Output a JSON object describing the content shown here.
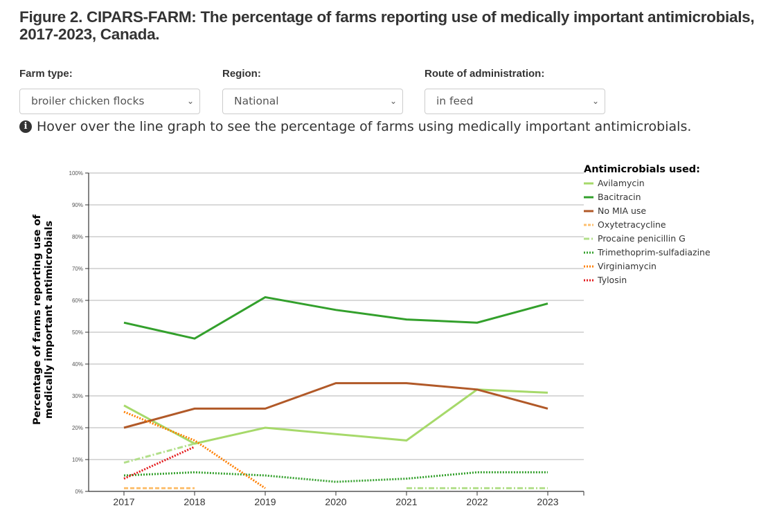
{
  "page": {
    "title": "Figure 2. CIPARS-FARM: The percentage of farms reporting use of medically important antimicrobials, 2017-2023, Canada.",
    "filters": [
      {
        "label": "Farm type:",
        "value": "broiler chicken flocks"
      },
      {
        "label": "Region:",
        "value": "National"
      },
      {
        "label": "Route of administration:",
        "value": "in feed"
      }
    ],
    "hint": "Hover over the line graph to see the percentage of farms using medically important antimicrobials.",
    "hint_icon": "info-circle-icon"
  },
  "chart_data": {
    "type": "line",
    "title": "",
    "xlabel": "",
    "ylabel": "Percentage of farms reporting use of medically important antimicrobials",
    "ylabel_lines": [
      "Percentage of farms reporting use of",
      "medically important antimicrobials"
    ],
    "x": [
      2017,
      2018,
      2019,
      2020,
      2021,
      2022,
      2023
    ],
    "x_tick_labels": [
      "2017",
      "2018",
      "2019",
      "2020",
      "2021",
      "2022",
      "2023"
    ],
    "ylim": [
      0,
      100
    ],
    "y_ticks": [
      0,
      10,
      20,
      30,
      40,
      50,
      60,
      70,
      80,
      90,
      100
    ],
    "y_tick_labels": [
      "0%",
      "10%",
      "20%",
      "30%",
      "40%",
      "50%",
      "60%",
      "70%",
      "80%",
      "90%",
      "100%"
    ],
    "grid": true,
    "legend_title": "Antimicrobials used:",
    "legend_position": "right",
    "series": [
      {
        "name": "Avilamycin",
        "color": "#a6d96a",
        "style": "solid",
        "values": [
          27,
          15,
          20,
          18,
          16,
          32,
          31
        ]
      },
      {
        "name": "Bacitracin",
        "color": "#33a02c",
        "style": "solid",
        "values": [
          53,
          48,
          61,
          57,
          54,
          53,
          59
        ]
      },
      {
        "name": "No MIA use",
        "color": "#b15928",
        "style": "solid",
        "values": [
          20,
          26,
          26,
          34,
          34,
          32,
          26
        ]
      },
      {
        "name": "Oxytetracycline",
        "color": "#fdbf6f",
        "style": "dashed",
        "values": [
          1,
          1,
          null,
          null,
          null,
          null,
          null
        ]
      },
      {
        "name": "Procaine penicillin G",
        "color": "#b2df8a",
        "style": "dashdot",
        "values": [
          9,
          15,
          null,
          null,
          1,
          1,
          1
        ]
      },
      {
        "name": "Trimethoprim-sulfadiazine",
        "color": "#33a02c",
        "style": "dotted",
        "values": [
          5,
          6,
          5,
          3,
          4,
          6,
          6
        ]
      },
      {
        "name": "Virginiamycin",
        "color": "#ff7f00",
        "style": "dotted",
        "values": [
          25,
          16,
          1,
          null,
          null,
          null,
          null
        ]
      },
      {
        "name": "Tylosin",
        "color": "#e31a1c",
        "style": "dotted",
        "values": [
          4,
          14,
          null,
          null,
          null,
          null,
          null
        ]
      }
    ]
  }
}
